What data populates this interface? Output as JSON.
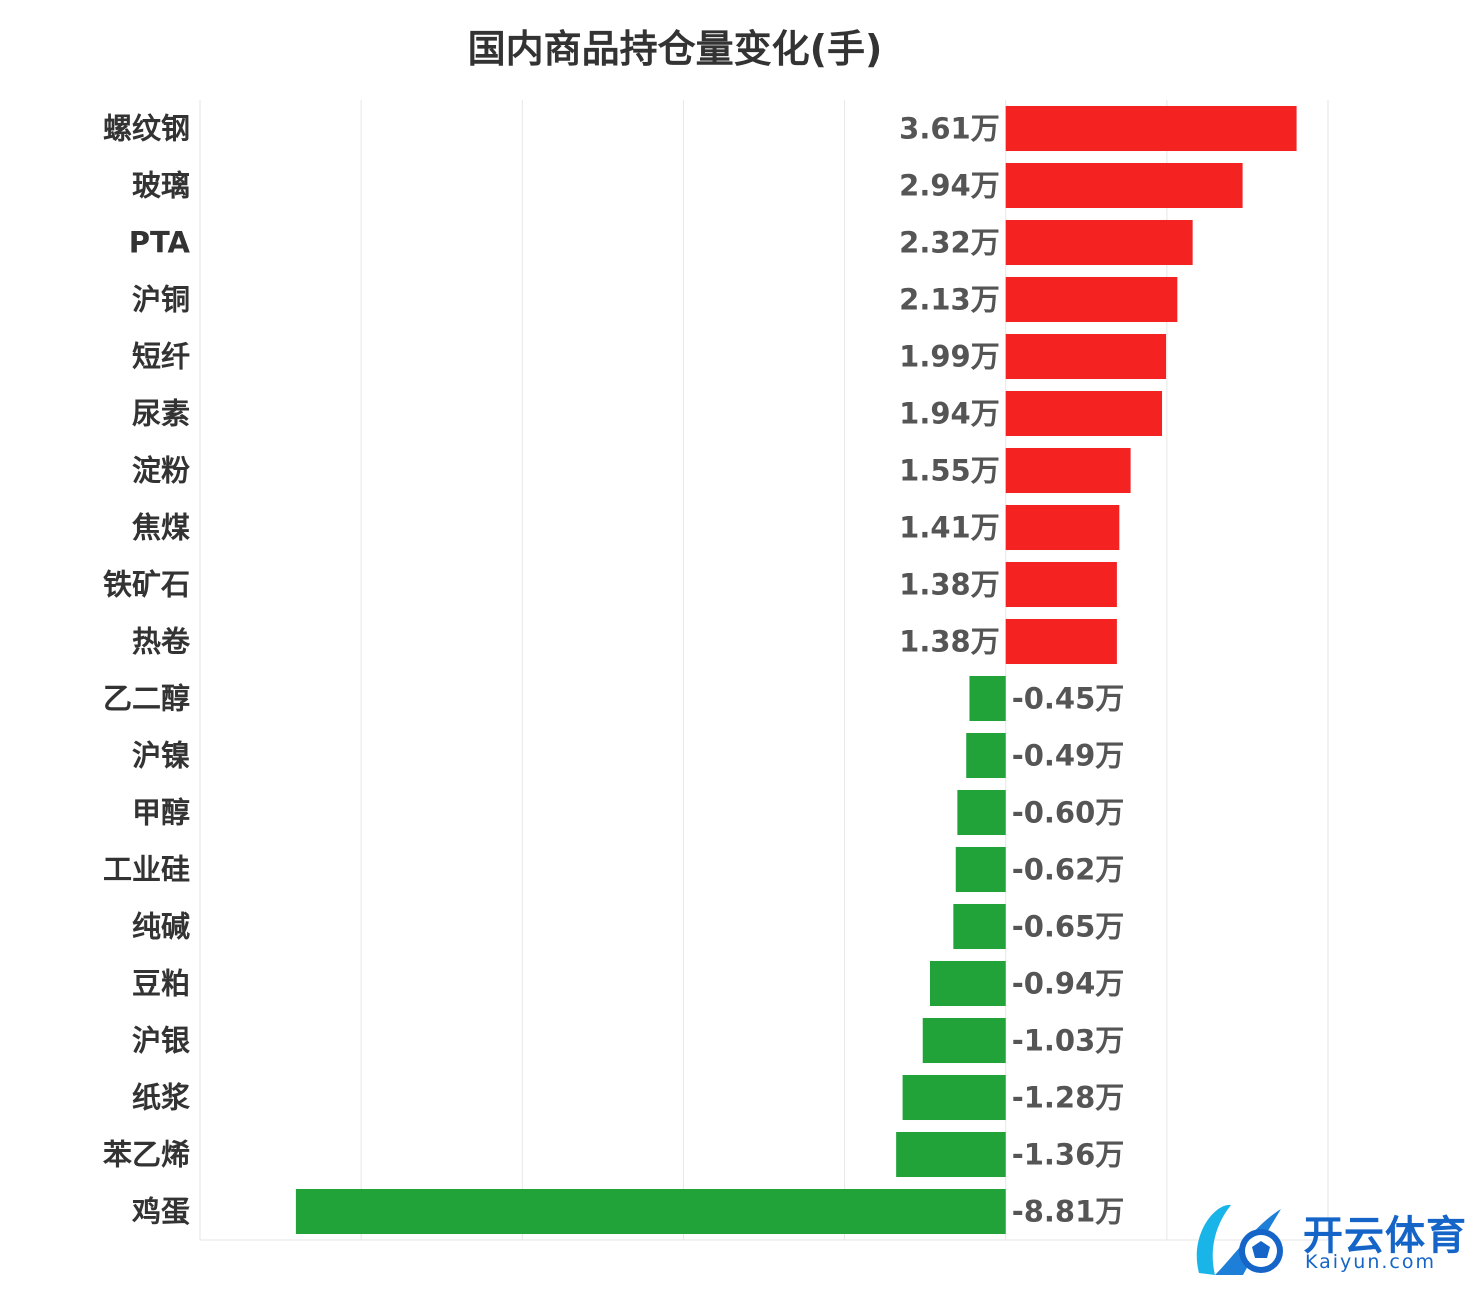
{
  "chart_data": {
    "type": "bar",
    "orientation": "horizontal",
    "title": "国内商品持仓量变化(手)",
    "categories": [
      "螺纹钢",
      "玻璃",
      "PTA",
      "沪铜",
      "短纤",
      "尿素",
      "淀粉",
      "焦煤",
      "铁矿石",
      "热卷",
      "乙二醇",
      "沪镍",
      "甲醇",
      "工业硅",
      "纯碱",
      "豆粕",
      "沪银",
      "纸浆",
      "苯乙烯",
      "鸡蛋"
    ],
    "values": [
      3.61,
      2.94,
      2.32,
      2.13,
      1.99,
      1.94,
      1.55,
      1.41,
      1.38,
      1.38,
      -0.45,
      -0.49,
      -0.6,
      -0.62,
      -0.65,
      -0.94,
      -1.03,
      -1.28,
      -1.36,
      -8.81
    ],
    "value_labels": [
      "3.61万",
      "2.94万",
      "2.32万",
      "2.13万",
      "1.99万",
      "1.94万",
      "1.55万",
      "1.41万",
      "1.38万",
      "1.38万",
      "-0.45万",
      "-0.49万",
      "-0.60万",
      "-0.62万",
      "-0.65万",
      "-0.94万",
      "-1.03万",
      "-1.28万",
      "-1.36万",
      "-8.81万"
    ],
    "unit": "万",
    "xlim": [
      -10,
      4
    ],
    "grid": true,
    "colors": {
      "positive": "#f52222",
      "negative": "#22a33a",
      "grid": "#e6e6e6"
    }
  },
  "watermark": {
    "text": "开云体育",
    "subtext": "Kaiyun.com"
  }
}
